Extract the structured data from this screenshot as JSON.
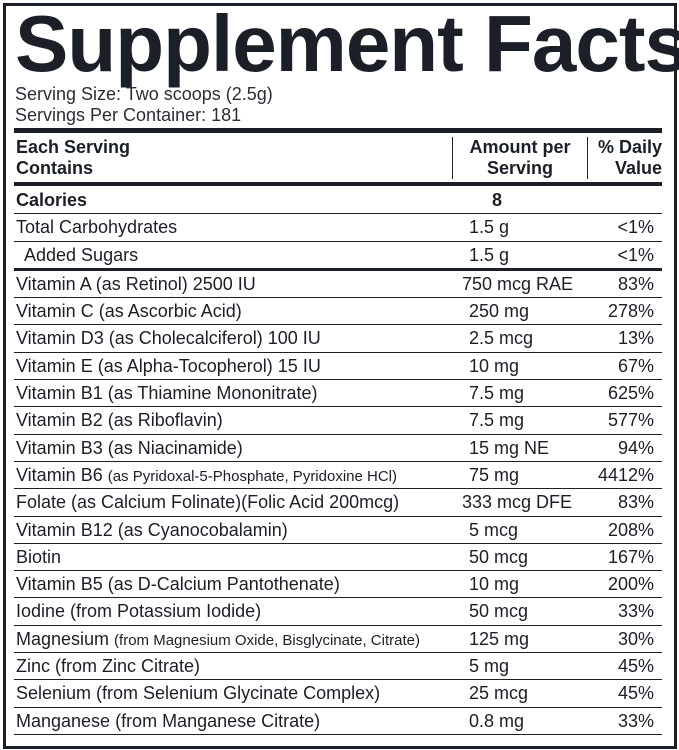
{
  "title": "Supplement Facts",
  "serving_size": "Serving Size: Two scoops (2.5g)",
  "servings_per_container": "Servings Per Container: 181",
  "header": {
    "col1": [
      "Each Serving",
      "Contains"
    ],
    "col2": [
      "Amount per",
      "Serving"
    ],
    "col3": [
      "% Daily",
      "Value"
    ]
  },
  "rows": [
    {
      "name": "Calories",
      "detail": "",
      "amount": "8",
      "dv": ""
    },
    {
      "name": "Total Carbohydrates",
      "detail": "",
      "amount": "1.5 g",
      "dv": "<1%"
    },
    {
      "name": "Added Sugars",
      "detail": "",
      "amount": "1.5 g",
      "dv": "<1%"
    },
    {
      "name": "Vitamin A (as Retinol) 2500 IU",
      "detail": "",
      "amount": "750 mcg RAE",
      "dv": "83%"
    },
    {
      "name": "Vitamin C (as Ascorbic Acid)",
      "detail": "",
      "amount": "250 mg",
      "dv": "278%"
    },
    {
      "name": "Vitamin D3 (as Cholecalciferol) 100 IU",
      "detail": "",
      "amount": "2.5 mcg",
      "dv": "13%"
    },
    {
      "name": "Vitamin E (as Alpha-Tocopherol) 15 IU",
      "detail": "",
      "amount": "10 mg",
      "dv": "67%"
    },
    {
      "name": "Vitamin B1 (as Thiamine Mononitrate)",
      "detail": "",
      "amount": "7.5 mg",
      "dv": "625%"
    },
    {
      "name": "Vitamin B2 (as Riboflavin)",
      "detail": "",
      "amount": "7.5 mg",
      "dv": "577%"
    },
    {
      "name": "Vitamin B3 (as Niacinamide)",
      "detail": "",
      "amount": "15 mg NE",
      "dv": "94%"
    },
    {
      "name": "Vitamin B6 ",
      "detail": "(as Pyridoxal-5-Phosphate, Pyridoxine HCl)",
      "amount": "75 mg",
      "dv": "4412%"
    },
    {
      "name": "Folate (as Calcium Folinate)(Folic Acid 200mcg)",
      "detail": "",
      "amount": "333 mcg DFE",
      "dv": "83%"
    },
    {
      "name": "Vitamin B12 (as Cyanocobalamin)",
      "detail": "",
      "amount": "5 mcg",
      "dv": "208%"
    },
    {
      "name": "Biotin",
      "detail": "",
      "amount": "50 mcg",
      "dv": "167%"
    },
    {
      "name": "Vitamin B5 (as D-Calcium Pantothenate)",
      "detail": "",
      "amount": "10 mg",
      "dv": "200%"
    },
    {
      "name": "Iodine (from Potassium Iodide)",
      "detail": "",
      "amount": "50 mcg",
      "dv": "33%"
    },
    {
      "name": "Magnesium ",
      "detail": "(from Magnesium Oxide, Bisglycinate, Citrate)",
      "amount": "125 mg",
      "dv": "30%"
    },
    {
      "name": "Zinc (from Zinc Citrate)",
      "detail": "",
      "amount": "5 mg",
      "dv": "45%"
    },
    {
      "name": "Selenium (from Selenium Glycinate Complex)",
      "detail": "",
      "amount": "25 mcg",
      "dv": "45%"
    },
    {
      "name": "Manganese (from Manganese Citrate)",
      "detail": "",
      "amount": "0.8 mg",
      "dv": "33%"
    }
  ]
}
